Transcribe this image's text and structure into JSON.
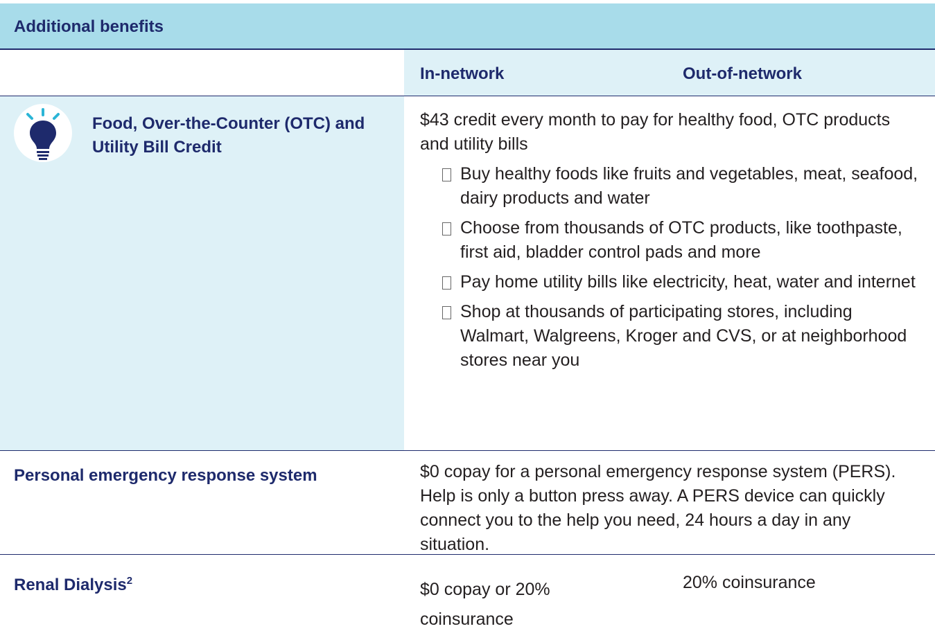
{
  "header": {
    "title": "Additional benefits"
  },
  "columns": {
    "in_network": "In-network",
    "out_of_network": "Out-of-network"
  },
  "rows": [
    {
      "label": "Food, Over-the-Counter (OTC) and Utility Bill Credit",
      "in_network": "$43 credit every month to pay for healthy food, OTC products and utility bills",
      "bullets": [
        "Buy healthy foods like fruits and vegetables, meat, seafood, dairy products and water",
        "Choose from thousands of OTC products, like toothpaste, first aid, bladder control pads and more",
        "Pay home utility bills like electricity, heat, water and internet",
        "Shop at thousands of participating stores, including Walmart, Walgreens, Kroger and CVS, or at neighborhood stores near you"
      ]
    },
    {
      "label": "Personal emergency response system",
      "in_network": "$0 copay for a personal emergency response system (PERS). Help is only a button press away. A PERS device can quickly connect you to the help you need, 24 hours a day in any situation."
    },
    {
      "label": "Renal Dialysis",
      "footnote": "2",
      "in_network": "$0 copay or 20% coinsurance",
      "out_of_network": "20% coinsurance"
    }
  ]
}
